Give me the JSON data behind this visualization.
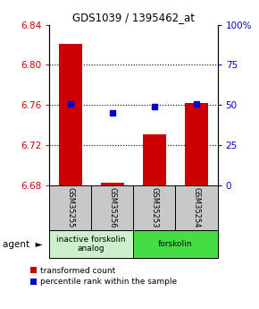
{
  "title": "GDS1039 / 1395462_at",
  "samples": [
    "GSM35255",
    "GSM35256",
    "GSM35253",
    "GSM35254"
  ],
  "bar_values": [
    6.821,
    6.683,
    6.731,
    6.762
  ],
  "bar_base": 6.68,
  "percentile_values": [
    51,
    45,
    49,
    51
  ],
  "ylim_min": 6.68,
  "ylim_max": 6.84,
  "yticks_left": [
    6.68,
    6.72,
    6.76,
    6.8,
    6.84
  ],
  "yticks_right": [
    0,
    25,
    50,
    75,
    100
  ],
  "ytick_labels_right": [
    "0",
    "25",
    "50",
    "75",
    "100%"
  ],
  "bar_color": "#cc0000",
  "percentile_color": "#0000cc",
  "grid_yticks": [
    6.72,
    6.76,
    6.8
  ],
  "legend_red": "transformed count",
  "legend_blue": "percentile rank within the sample",
  "left_tick_color": "#cc0000",
  "right_tick_color": "#0000cc",
  "group_defs": [
    {
      "label": "inactive forskolin\nanalog",
      "color": "#ccf0cc",
      "xmin": -0.5,
      "xmax": 1.5
    },
    {
      "label": "forskolin",
      "color": "#44dd44",
      "xmin": 1.5,
      "xmax": 3.5
    }
  ],
  "sample_box_color": "#c8c8c8",
  "bar_width": 0.55
}
